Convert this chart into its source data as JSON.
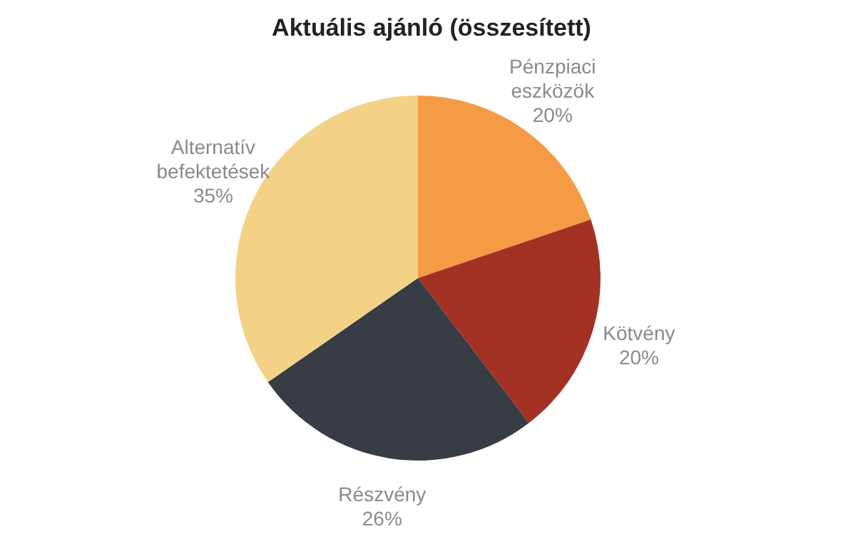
{
  "chart_data": {
    "type": "pie",
    "title": "Aktuális ajánló (összesített)",
    "categories": [
      "Pénzpiaci eszközök",
      "Kötvény",
      "Részvény",
      "Alternatív befektetések"
    ],
    "values": [
      20,
      20,
      26,
      35
    ],
    "value_labels": [
      "20%",
      "20%",
      "26%",
      "35%"
    ],
    "colors": [
      "#f59b45",
      "#a33224",
      "#383c45",
      "#f3d288"
    ],
    "legend": false
  }
}
